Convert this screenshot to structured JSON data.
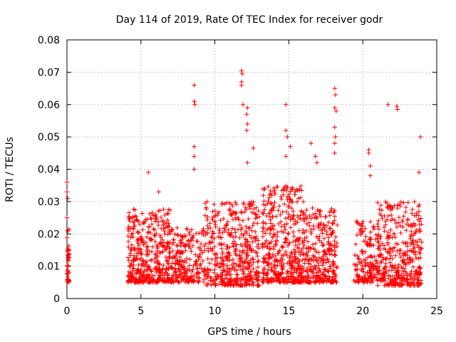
{
  "chart_data": {
    "type": "scatter",
    "title": "Day 114 of 2019, Rate Of TEC Index for receiver godr",
    "xlabel": "GPS time / hours",
    "ylabel": "ROTI / TECUs",
    "xlim": [
      0,
      25
    ],
    "ylim": [
      0,
      0.08
    ],
    "xticks": [
      0,
      5,
      10,
      15,
      20,
      25
    ],
    "xtick_labels": [
      "0",
      "5",
      "10",
      "15",
      "20",
      "25"
    ],
    "yticks": [
      0,
      0.01,
      0.02,
      0.03,
      0.04,
      0.05,
      0.06,
      0.07,
      0.08
    ],
    "ytick_labels": [
      "0",
      "0.01",
      "0.02",
      "0.03",
      "0.04",
      "0.05",
      "0.06",
      "0.07",
      "0.08"
    ],
    "grid": true,
    "marker": "+",
    "color": "#ff0000",
    "notable_points": [
      {
        "x": 0.0,
        "y": 0.036
      },
      {
        "x": 0.0,
        "y": 0.033
      },
      {
        "x": 0.05,
        "y": 0.031
      },
      {
        "x": 0.0,
        "y": 0.025
      },
      {
        "x": 0.05,
        "y": 0.021
      },
      {
        "x": 0.0,
        "y": 0.01
      },
      {
        "x": 0.05,
        "y": 0.006
      },
      {
        "x": 5.5,
        "y": 0.039
      },
      {
        "x": 6.2,
        "y": 0.033
      },
      {
        "x": 8.6,
        "y": 0.066
      },
      {
        "x": 8.6,
        "y": 0.061
      },
      {
        "x": 8.65,
        "y": 0.06
      },
      {
        "x": 8.6,
        "y": 0.047
      },
      {
        "x": 8.6,
        "y": 0.044
      },
      {
        "x": 8.6,
        "y": 0.04
      },
      {
        "x": 11.8,
        "y": 0.0705
      },
      {
        "x": 11.85,
        "y": 0.0695
      },
      {
        "x": 11.8,
        "y": 0.067
      },
      {
        "x": 11.8,
        "y": 0.066
      },
      {
        "x": 11.9,
        "y": 0.06
      },
      {
        "x": 12.2,
        "y": 0.059
      },
      {
        "x": 12.15,
        "y": 0.057
      },
      {
        "x": 12.2,
        "y": 0.054
      },
      {
        "x": 12.15,
        "y": 0.052
      },
      {
        "x": 12.6,
        "y": 0.0465
      },
      {
        "x": 12.2,
        "y": 0.042
      },
      {
        "x": 14.8,
        "y": 0.06
      },
      {
        "x": 14.8,
        "y": 0.052
      },
      {
        "x": 14.9,
        "y": 0.05
      },
      {
        "x": 15.1,
        "y": 0.047
      },
      {
        "x": 14.8,
        "y": 0.044
      },
      {
        "x": 16.5,
        "y": 0.048
      },
      {
        "x": 16.8,
        "y": 0.044
      },
      {
        "x": 16.9,
        "y": 0.042
      },
      {
        "x": 18.1,
        "y": 0.065
      },
      {
        "x": 18.15,
        "y": 0.063
      },
      {
        "x": 18.1,
        "y": 0.059
      },
      {
        "x": 18.2,
        "y": 0.058
      },
      {
        "x": 18.1,
        "y": 0.053
      },
      {
        "x": 18.15,
        "y": 0.05
      },
      {
        "x": 18.1,
        "y": 0.048
      },
      {
        "x": 18.1,
        "y": 0.045
      },
      {
        "x": 20.4,
        "y": 0.046
      },
      {
        "x": 20.4,
        "y": 0.045
      },
      {
        "x": 20.5,
        "y": 0.041
      },
      {
        "x": 20.5,
        "y": 0.038
      },
      {
        "x": 21.7,
        "y": 0.06
      },
      {
        "x": 22.3,
        "y": 0.0595
      },
      {
        "x": 22.35,
        "y": 0.0585
      },
      {
        "x": 23.9,
        "y": 0.05
      },
      {
        "x": 23.8,
        "y": 0.039
      }
    ],
    "clusters": [
      {
        "x_range": [
          0.0,
          0.15
        ],
        "y_range": [
          0.005,
          0.022
        ],
        "count": 40
      },
      {
        "x_range": [
          4.1,
          7.0
        ],
        "y_range": [
          0.005,
          0.028
        ],
        "count": 420
      },
      {
        "x_range": [
          7.0,
          9.3
        ],
        "y_range": [
          0.005,
          0.022
        ],
        "count": 230
      },
      {
        "x_range": [
          9.3,
          13.0
        ],
        "y_range": [
          0.004,
          0.03
        ],
        "count": 480
      },
      {
        "x_range": [
          13.2,
          16.0
        ],
        "y_range": [
          0.005,
          0.035
        ],
        "count": 460
      },
      {
        "x_range": [
          16.0,
          18.3
        ],
        "y_range": [
          0.005,
          0.028
        ],
        "count": 300
      },
      {
        "x_range": [
          19.4,
          21.0
        ],
        "y_range": [
          0.005,
          0.024
        ],
        "count": 160
      },
      {
        "x_range": [
          21.0,
          24.0
        ],
        "y_range": [
          0.004,
          0.03
        ],
        "count": 400
      }
    ]
  }
}
